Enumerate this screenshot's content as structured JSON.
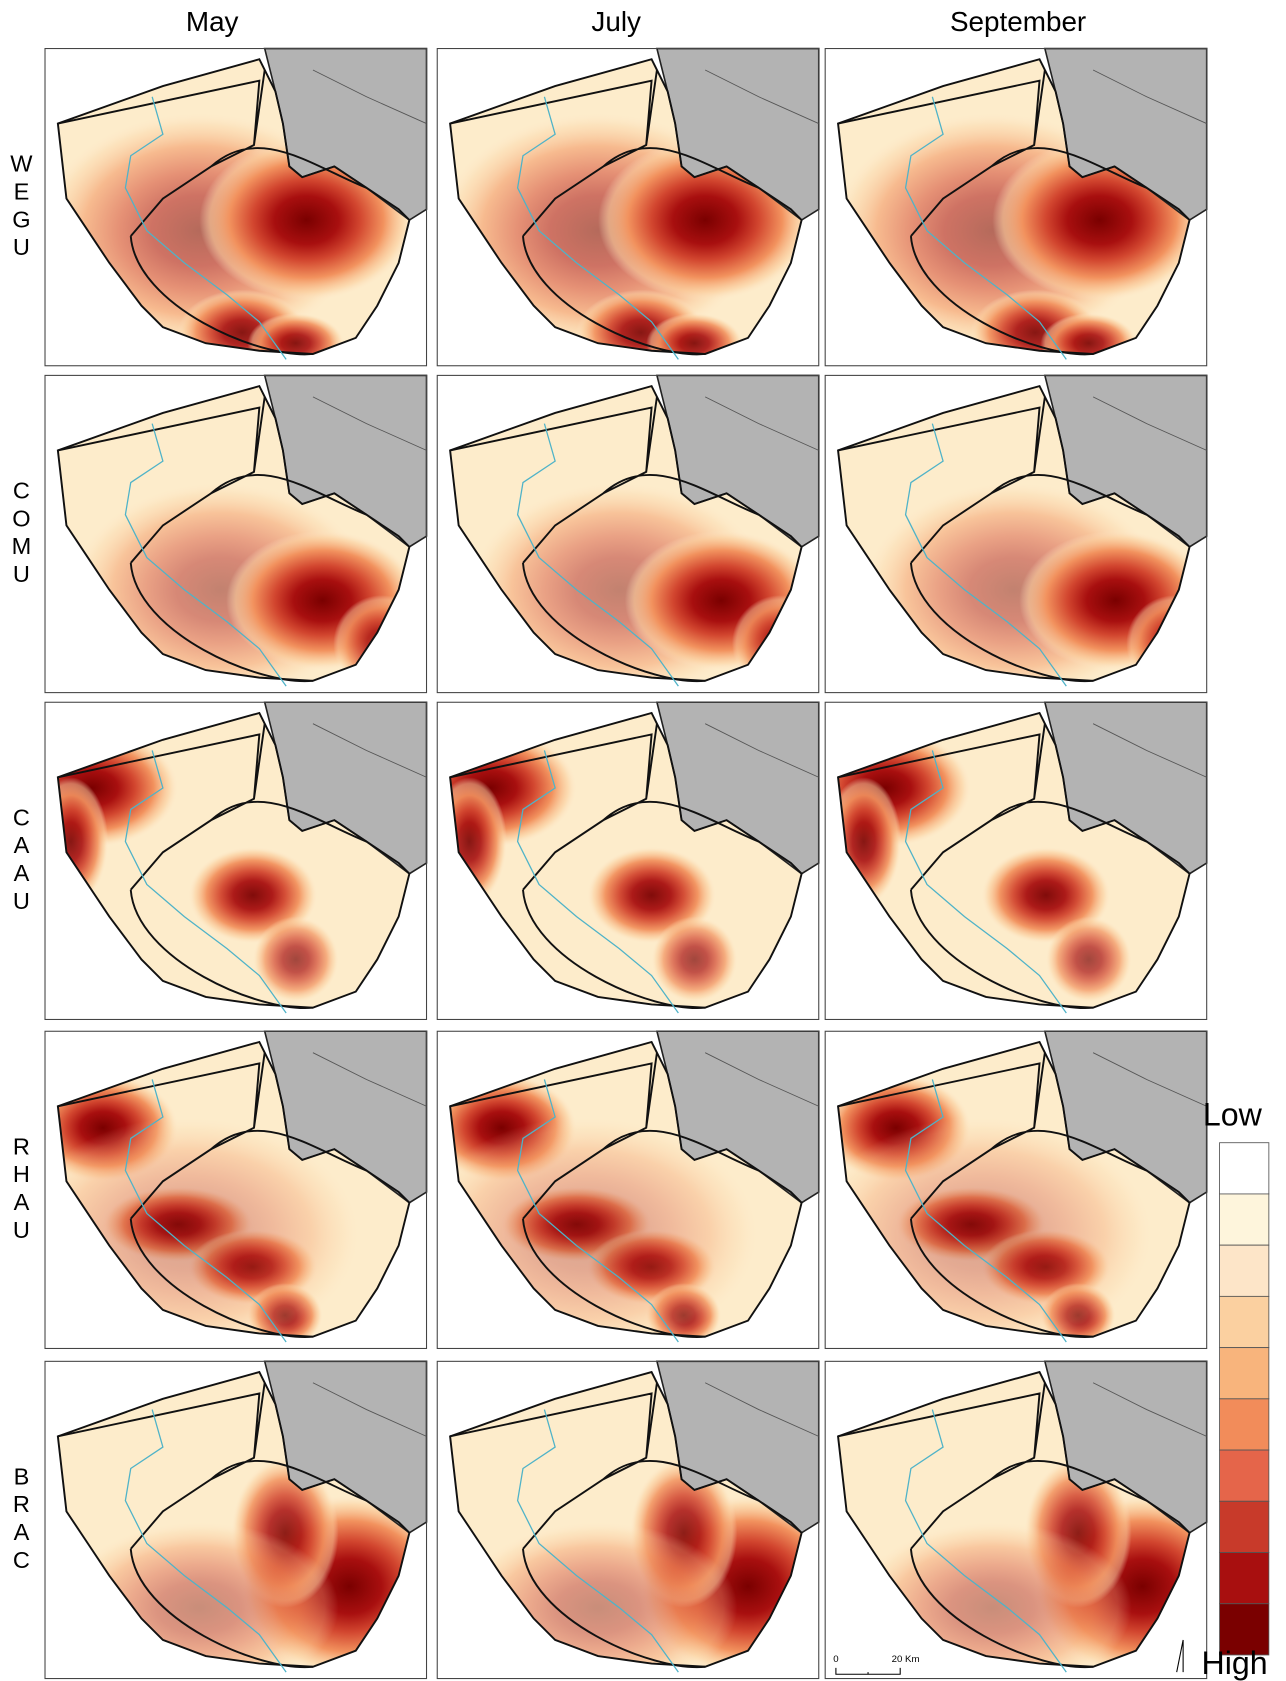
{
  "columns": [
    "May",
    "July",
    "September"
  ],
  "rows": [
    [
      "W",
      "E",
      "G",
      "U"
    ],
    [
      "C",
      "O",
      "M",
      "U"
    ],
    [
      "C",
      "A",
      "A",
      "U"
    ],
    [
      "R",
      "H",
      "A",
      "U"
    ],
    [
      "B",
      "R",
      "A",
      "C"
    ]
  ],
  "legend": {
    "low": "Low",
    "high": "High"
  },
  "scale_bar": {
    "start": "0",
    "end": "20 Km"
  }
}
